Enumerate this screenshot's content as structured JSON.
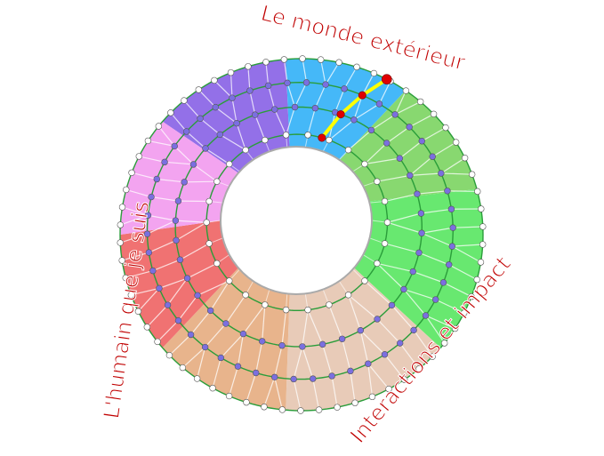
{
  "labels": {
    "top": "Le monde extérieur",
    "left": "L'humain que je suis",
    "bottom_right": "Interactions et impact"
  },
  "colors": {
    "label": "#c00000",
    "ring_line": "#2a9d3a",
    "path": "#ffff00",
    "path_points": "#e00000",
    "inner_points": "#7b6fe0",
    "edge_points": "#ffffff",
    "sectors": [
      "#9370e8",
      "#45b8f8",
      "#88d870",
      "#68e870",
      "#e8cbb8",
      "#e8b48c",
      "#f07272",
      "#f3a4f0"
    ]
  }
}
